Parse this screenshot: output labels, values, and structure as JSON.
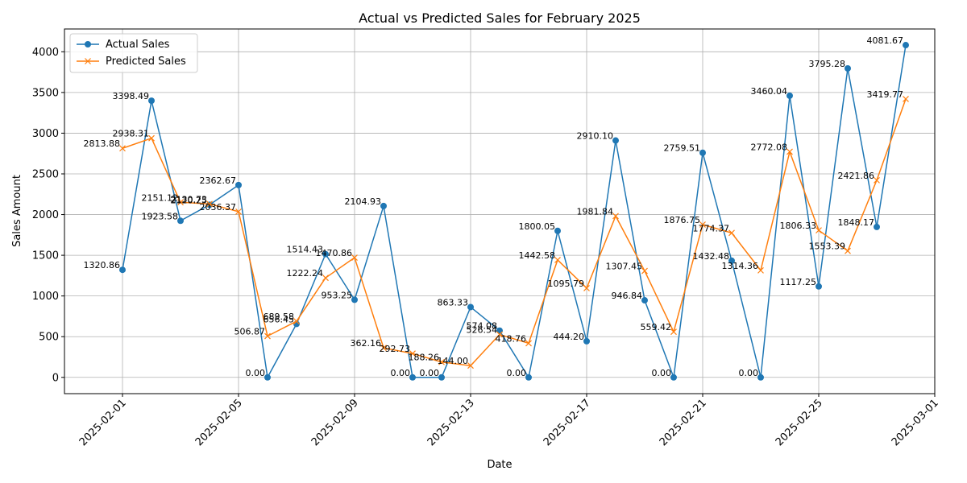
{
  "chart_data": {
    "type": "line",
    "title": "Actual vs Predicted Sales for February 2025",
    "xlabel": "Date",
    "ylabel": "Sales Amount",
    "x": [
      "2025-02-01",
      "2025-02-02",
      "2025-02-03",
      "2025-02-04",
      "2025-02-05",
      "2025-02-06",
      "2025-02-07",
      "2025-02-08",
      "2025-02-09",
      "2025-02-10",
      "2025-02-11",
      "2025-02-12",
      "2025-02-13",
      "2025-02-14",
      "2025-02-15",
      "2025-02-16",
      "2025-02-17",
      "2025-02-18",
      "2025-02-19",
      "2025-02-20",
      "2025-02-21",
      "2025-02-22",
      "2025-02-23",
      "2025-02-24",
      "2025-02-25",
      "2025-02-26",
      "2025-02-27",
      "2025-02-28"
    ],
    "xlim": [
      "2025-01-30",
      "2025-03-01"
    ],
    "x_ticks": [
      "2025-02-01",
      "2025-02-05",
      "2025-02-09",
      "2025-02-13",
      "2025-02-17",
      "2025-02-21",
      "2025-02-25",
      "2025-03-01"
    ],
    "ylim": [
      -200,
      4280
    ],
    "y_ticks": [
      0,
      500,
      1000,
      1500,
      2000,
      2500,
      3000,
      3500,
      4000
    ],
    "grid": true,
    "legend_position": "top-left",
    "series": [
      {
        "name": "Actual Sales",
        "color": "#1f77b4",
        "marker": "circle",
        "values": [
          1320.86,
          3398.49,
          1923.58,
          2120.25,
          2362.67,
          0.0,
          656.45,
          1514.43,
          953.25,
          2104.93,
          0.0,
          0.0,
          863.33,
          574.08,
          0.0,
          1800.05,
          444.2,
          2910.1,
          946.84,
          0.0,
          2759.51,
          1432.48,
          0.0,
          3460.04,
          1117.25,
          3795.28,
          1848.17,
          4081.67
        ],
        "labels": [
          "1320.86",
          "3398.49",
          "1923.58",
          "2120.25",
          "2362.67",
          "0.00",
          "656.45",
          "1514.43",
          "953.25",
          "2104.93",
          "0.00",
          "0.00",
          "863.33",
          "574.08",
          "0.00",
          "1800.05",
          "444.20",
          "2910.10",
          "946.84",
          "0.00",
          "2759.51",
          "1432.48",
          "0.00",
          "3460.04",
          "1117.25",
          "3795.28",
          "1848.17",
          "4081.67"
        ]
      },
      {
        "name": "Predicted Sales",
        "color": "#ff7f0e",
        "marker": "x",
        "values": [
          2813.88,
          2938.31,
          2151.12,
          2130.73,
          2036.37,
          506.87,
          689.58,
          1222.24,
          1470.86,
          362.16,
          292.73,
          188.26,
          144.0,
          526.54,
          418.76,
          1442.58,
          1095.79,
          1981.84,
          1307.45,
          559.42,
          1876.75,
          1774.37,
          1314.36,
          2772.08,
          1806.33,
          1553.39,
          2421.86,
          3419.77
        ],
        "labels": [
          "2813.88",
          "2938.31",
          "2151.12",
          "2130.73",
          "2036.37",
          "506.87",
          "689.58",
          "1222.24",
          "1470.86",
          "362.16",
          "292.73",
          "188.26",
          "144.00",
          "526.54",
          "418.76",
          "1442.58",
          "1095.79",
          "1981.84",
          "1307.45",
          "559.42",
          "1876.75",
          "1774.37",
          "1314.36",
          "2772.08",
          "1806.33",
          "1553.39",
          "2421.86",
          "3419.77"
        ]
      }
    ]
  }
}
